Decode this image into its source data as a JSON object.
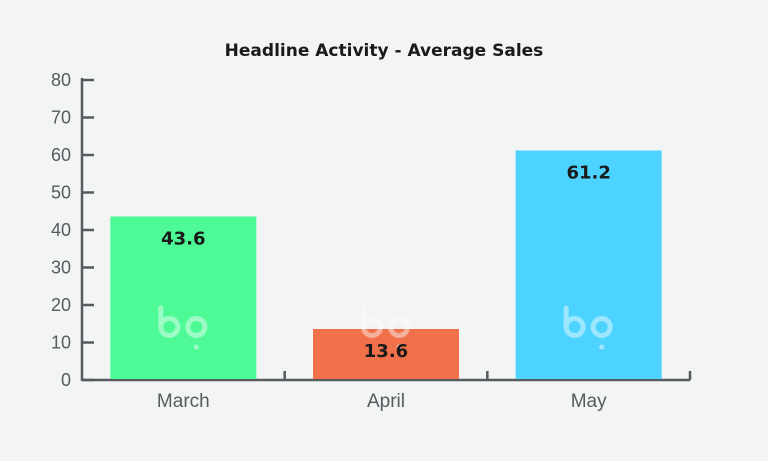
{
  "chart_data": {
    "type": "bar",
    "title": "Headline Activity - Average Sales",
    "xlabel": "",
    "ylabel": "",
    "categories": [
      "March",
      "April",
      "May"
    ],
    "values": [
      43.6,
      13.6,
      61.2
    ],
    "data_labels": [
      "43.6",
      "13.6",
      "61.2"
    ],
    "bar_colors": [
      "#4dfa95",
      "#f0714a",
      "#4dd3ff"
    ],
    "ylim": [
      0,
      80
    ],
    "yticks": [
      0,
      10,
      20,
      30,
      40,
      50,
      60,
      70,
      80
    ],
    "grid": false,
    "legend": "none",
    "watermark_icon": "bp-logo-icon"
  }
}
